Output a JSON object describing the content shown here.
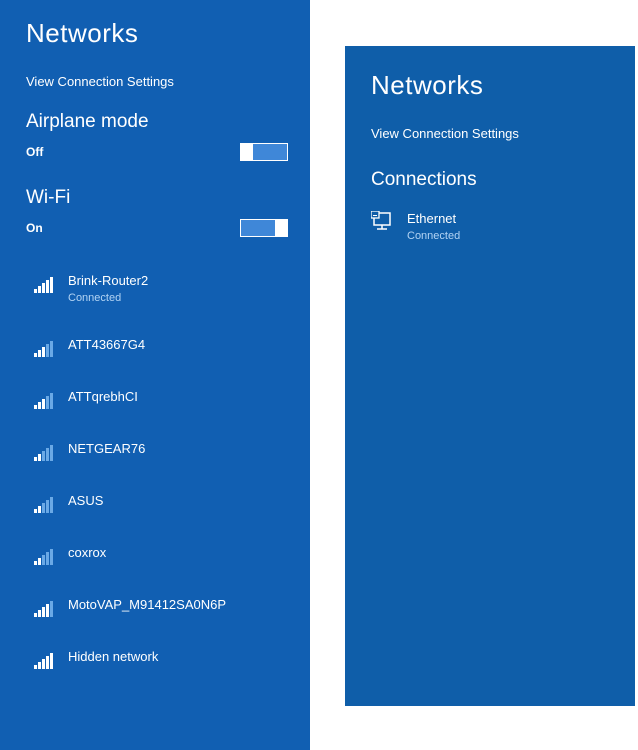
{
  "left": {
    "title": "Networks",
    "settings_link": "View Connection Settings",
    "airplane": {
      "label": "Airplane mode",
      "state": "Off",
      "on": false
    },
    "wifi": {
      "label": "Wi-Fi",
      "state": "On",
      "on": true
    },
    "networks": [
      {
        "ssid": "Brink-Router2",
        "status": "Connected",
        "bars": 5
      },
      {
        "ssid": "ATT43667G4",
        "status": "",
        "bars": 3
      },
      {
        "ssid": "ATTqrebhCI",
        "status": "",
        "bars": 3
      },
      {
        "ssid": "NETGEAR76",
        "status": "",
        "bars": 2
      },
      {
        "ssid": "ASUS",
        "status": "",
        "bars": 2
      },
      {
        "ssid": "coxrox",
        "status": "",
        "bars": 2
      },
      {
        "ssid": "MotoVAP_M91412SA0N6P",
        "status": "",
        "bars": 4
      },
      {
        "ssid": "Hidden network",
        "status": "",
        "bars": 5
      }
    ]
  },
  "right": {
    "title": "Networks",
    "settings_link": "View Connection Settings",
    "connections_label": "Connections",
    "connections": [
      {
        "name": "Ethernet",
        "status": "Connected"
      }
    ]
  },
  "colors": {
    "left_bg": "#115fb2",
    "right_bg": "#0f5ea9",
    "subtext": "#b3d4f4"
  }
}
